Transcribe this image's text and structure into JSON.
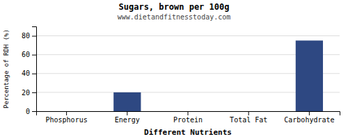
{
  "chart_data": {
    "type": "bar",
    "title": "Sugars, brown per 100g",
    "subtitle": "www.dietandfitnesstoday.com",
    "xlabel": "Different Nutrients",
    "ylabel": "Percentage of RDH (%)",
    "categories": [
      "Phosphorus",
      "Energy",
      "Protein",
      "Total Fat",
      "Carbohydrate"
    ],
    "values": [
      0,
      20,
      0,
      0,
      75
    ],
    "color": "#2e4882",
    "ylim": [
      0,
      90
    ],
    "yticks": [
      0,
      20,
      40,
      60,
      80
    ],
    "grid": true
  }
}
